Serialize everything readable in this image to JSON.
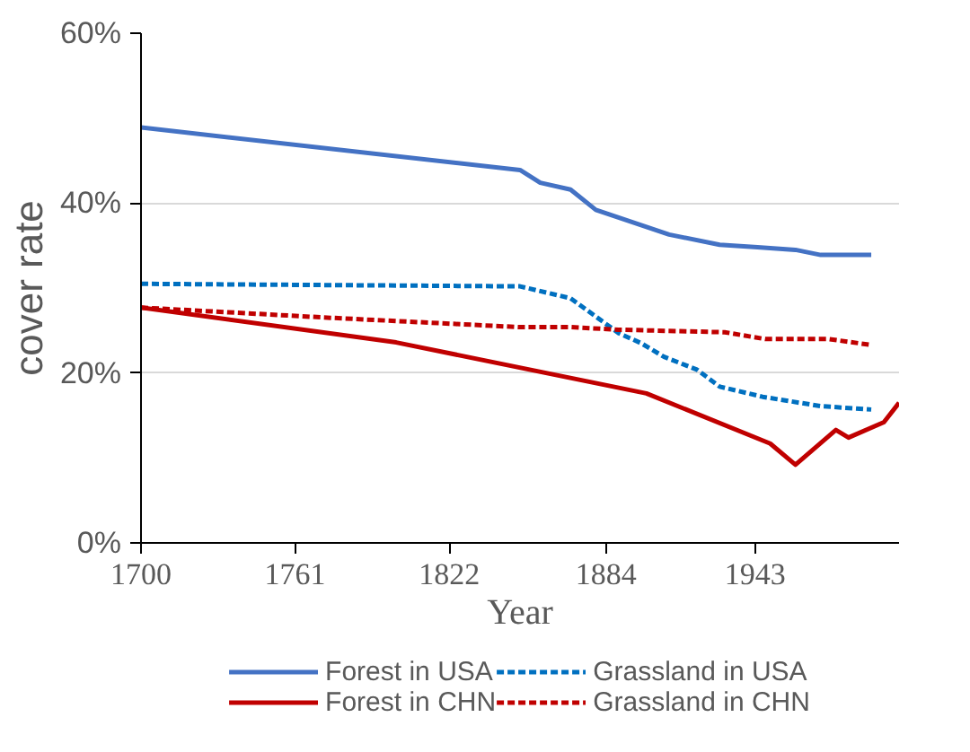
{
  "chart_data": {
    "type": "line",
    "xlabel": "Year",
    "ylabel": "cover rate",
    "xlim": [
      1700,
      2000
    ],
    "xticks": [
      1700,
      1761,
      1822,
      1884,
      1943
    ],
    "ylim": [
      0,
      60
    ],
    "yticks": [
      {
        "value": 0,
        "label": "0%"
      },
      {
        "value": 20,
        "label": "20%"
      },
      {
        "value": 40,
        "label": "40%"
      },
      {
        "value": 60,
        "label": "60%"
      }
    ],
    "grid": "y",
    "legend": "bottom",
    "series": [
      {
        "name": "Forest in USA",
        "color": "#4472c4",
        "line_style": "solid",
        "x": [
          1700,
          1850,
          1858,
          1870,
          1880,
          1909,
          1929,
          1944,
          1959,
          1969,
          1989
        ],
        "values": [
          48.9,
          43.9,
          42.4,
          41.6,
          39.2,
          36.3,
          35.1,
          34.8,
          34.5,
          33.9,
          33.9
        ]
      },
      {
        "name": "Grassland in USA",
        "color": "#0070c0",
        "line_style": "dashed",
        "x": [
          1700,
          1850,
          1870,
          1889,
          1898,
          1907,
          1920,
          1929,
          1946,
          1969,
          1989
        ],
        "values": [
          30.5,
          30.2,
          28.8,
          24.7,
          23.5,
          21.9,
          20.4,
          18.4,
          17.2,
          16.1,
          15.7
        ]
      },
      {
        "name": "Forest in CHN",
        "color": "#c00000",
        "line_style": "solid",
        "x": [
          1700,
          1801,
          1900,
          1949,
          1959,
          1975,
          1980,
          1994,
          2000
        ],
        "values": [
          27.7,
          23.6,
          17.6,
          11.7,
          9.2,
          13.3,
          12.4,
          14.2,
          16.5
        ]
      },
      {
        "name": "Grassland in CHN",
        "color": "#c00000",
        "line_style": "dashed",
        "x": [
          1700,
          1775,
          1850,
          1870,
          1889,
          1931,
          1947,
          1972,
          1989
        ],
        "values": [
          27.7,
          26.5,
          25.4,
          25.4,
          25.1,
          24.8,
          24.0,
          24.0,
          23.3
        ]
      }
    ]
  }
}
